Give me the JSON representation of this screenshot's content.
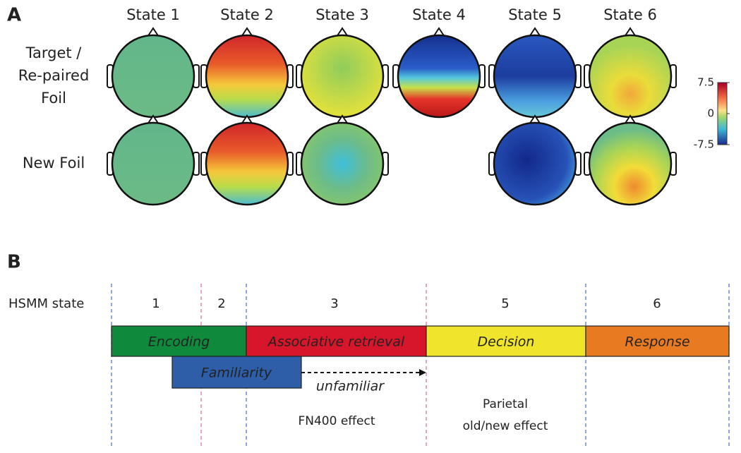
{
  "panel_a": {
    "label": "A",
    "states": [
      "State 1",
      "State 2",
      "State 3",
      "State 4",
      "State 5",
      "State 6"
    ],
    "rows": [
      {
        "lines": [
          "Target /",
          "Re-paired",
          "Foil"
        ]
      },
      {
        "lines": [
          "New Foil"
        ]
      }
    ],
    "colorbar": {
      "lim": [
        -7.5,
        7.5
      ],
      "ticks": [
        7.5,
        0,
        -7.5
      ]
    }
  },
  "panel_b": {
    "label": "B",
    "row_label": "HSMM state",
    "states": [
      1,
      2,
      3,
      5,
      6
    ],
    "stages": [
      {
        "label": "Encoding",
        "color": "#0f8a3c"
      },
      {
        "label": "Associative retrieval",
        "color": "#d8162b"
      },
      {
        "label": "Decision",
        "color": "#f1e42c"
      },
      {
        "label": "Response",
        "color": "#e87b22"
      }
    ],
    "familiarity": {
      "label": "Familiarity",
      "color": "#2d5ea7"
    },
    "arrow_label": "unfamiliar",
    "fn400": "FN400 effect",
    "parietal": [
      "Parietal",
      "old/new effect"
    ]
  }
}
